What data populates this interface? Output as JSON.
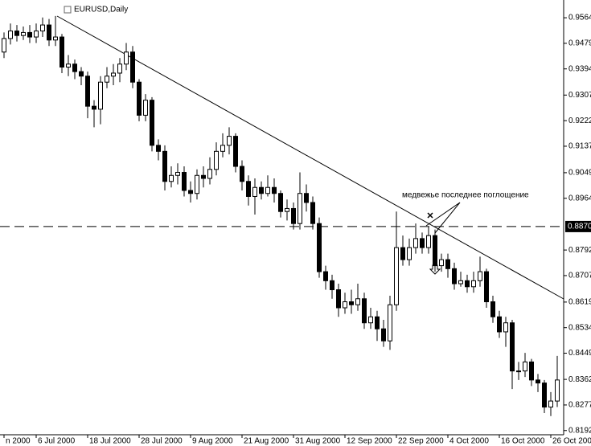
{
  "chart_data": {
    "type": "candlestick",
    "title": "EURUSD,Daily",
    "annotation": "медвежье последнее поглощение",
    "categories": [
      "n 2000",
      null,
      null,
      null,
      null,
      "6 Jul 2000",
      null,
      null,
      null,
      null,
      null,
      null,
      null,
      "18 Jul 2000",
      null,
      null,
      null,
      null,
      null,
      null,
      null,
      "28 Jul 2000",
      null,
      null,
      null,
      null,
      null,
      null,
      null,
      "9 Aug 2000",
      null,
      null,
      null,
      null,
      null,
      null,
      null,
      "21 Aug 2000",
      null,
      null,
      null,
      null,
      null,
      null,
      null,
      "31 Aug 2000",
      null,
      null,
      null,
      null,
      null,
      null,
      null,
      "12 Sep 2000",
      null,
      null,
      null,
      null,
      null,
      null,
      null,
      "22 Sep 2000",
      null,
      null,
      null,
      null,
      null,
      null,
      null,
      "4 Oct 2000",
      null,
      null,
      null,
      null,
      null,
      null,
      null,
      "16 Oct 2000",
      null,
      null,
      null,
      null,
      null,
      null,
      null,
      "26 Oct 200",
      null
    ],
    "open": [
      0.945,
      0.9495,
      0.952,
      0.9505,
      0.9515,
      0.95,
      0.952,
      0.954,
      0.949,
      0.95,
      0.94,
      0.941,
      0.9385,
      0.937,
      0.927,
      0.926,
      0.935,
      0.937,
      0.938,
      0.941,
      0.945,
      0.935,
      0.924,
      0.929,
      0.914,
      0.912,
      0.902,
      0.904,
      0.905,
      0.899,
      0.898,
      0.904,
      0.903,
      0.906,
      0.912,
      0.914,
      0.917,
      0.907,
      0.902,
      0.897,
      0.9,
      0.898,
      0.9,
      0.898,
      0.892,
      0.893,
      0.888,
      0.898,
      0.895,
      0.888,
      0.872,
      0.869,
      0.866,
      0.86,
      0.862,
      0.861,
      0.863,
      0.855,
      0.857,
      0.853,
      0.849,
      0.861,
      0.88,
      0.876,
      0.88,
      0.883,
      0.88,
      0.884,
      0.874,
      0.876,
      0.873,
      0.868,
      0.869,
      0.867,
      0.869,
      0.872,
      0.862,
      0.857,
      0.852,
      0.855,
      0.839,
      0.839,
      0.842,
      0.836,
      0.835,
      0.827,
      0.829
    ],
    "high": [
      0.9515,
      0.9545,
      0.954,
      0.9535,
      0.954,
      0.9545,
      0.9565,
      0.956,
      0.957,
      0.951,
      0.944,
      0.9425,
      0.94,
      0.9385,
      0.929,
      0.937,
      0.94,
      0.941,
      0.943,
      0.948,
      0.947,
      0.936,
      0.931,
      0.93,
      0.916,
      0.914,
      0.907,
      0.908,
      0.907,
      0.902,
      0.906,
      0.907,
      0.91,
      0.915,
      0.918,
      0.92,
      0.918,
      0.909,
      0.904,
      0.903,
      0.902,
      0.904,
      0.903,
      0.899,
      0.896,
      0.895,
      0.905,
      0.901,
      0.897,
      0.89,
      0.874,
      0.871,
      0.868,
      0.865,
      0.866,
      0.868,
      0.865,
      0.86,
      0.859,
      0.856,
      0.864,
      0.892,
      0.884,
      0.883,
      0.888,
      0.885,
      0.887,
      0.886,
      0.878,
      0.878,
      0.875,
      0.872,
      0.871,
      0.872,
      0.877,
      0.873,
      0.864,
      0.859,
      0.857,
      0.856,
      0.842,
      0.845,
      0.843,
      0.838,
      0.836,
      0.832,
      0.844
    ],
    "low": [
      0.943,
      0.9475,
      0.9485,
      0.949,
      0.948,
      0.948,
      0.95,
      0.947,
      0.947,
      0.938,
      0.937,
      0.936,
      0.934,
      0.923,
      0.92,
      0.921,
      0.933,
      0.934,
      0.935,
      0.939,
      0.933,
      0.922,
      0.922,
      0.912,
      0.909,
      0.899,
      0.9,
      0.901,
      0.897,
      0.895,
      0.896,
      0.9,
      0.901,
      0.904,
      0.91,
      0.911,
      0.905,
      0.899,
      0.894,
      0.891,
      0.896,
      0.897,
      0.895,
      0.89,
      0.889,
      0.886,
      0.886,
      0.892,
      0.886,
      0.87,
      0.866,
      0.863,
      0.857,
      0.858,
      0.858,
      0.859,
      0.853,
      0.853,
      0.849,
      0.847,
      0.846,
      0.859,
      0.874,
      0.874,
      0.878,
      0.878,
      0.878,
      0.872,
      0.872,
      0.87,
      0.866,
      0.867,
      0.865,
      0.865,
      0.867,
      0.86,
      0.855,
      0.85,
      0.847,
      0.833,
      0.836,
      0.837,
      0.834,
      0.832,
      0.825,
      0.824,
      0.827
    ],
    "close": [
      0.9495,
      0.952,
      0.9505,
      0.9515,
      0.95,
      0.952,
      0.954,
      0.949,
      0.95,
      0.94,
      0.941,
      0.9385,
      0.937,
      0.927,
      0.926,
      0.935,
      0.937,
      0.938,
      0.941,
      0.945,
      0.935,
      0.924,
      0.929,
      0.914,
      0.912,
      0.902,
      0.904,
      0.905,
      0.899,
      0.898,
      0.904,
      0.903,
      0.906,
      0.912,
      0.914,
      0.917,
      0.907,
      0.902,
      0.897,
      0.9,
      0.898,
      0.9,
      0.898,
      0.892,
      0.893,
      0.888,
      0.898,
      0.895,
      0.888,
      0.872,
      0.869,
      0.866,
      0.86,
      0.862,
      0.861,
      0.863,
      0.855,
      0.857,
      0.853,
      0.849,
      0.861,
      0.88,
      0.876,
      0.88,
      0.883,
      0.88,
      0.884,
      0.874,
      0.876,
      0.873,
      0.868,
      0.869,
      0.867,
      0.869,
      0.872,
      0.862,
      0.857,
      0.852,
      0.855,
      0.839,
      0.839,
      0.842,
      0.836,
      0.835,
      0.827,
      0.829,
      0.836
    ],
    "up_color": "#ffffff",
    "down_color": "#000000",
    "ylim": [
      0.8178,
      0.9623
    ],
    "yticks": [
      0.9564,
      0.9479,
      0.9394,
      0.9307,
      0.9222,
      0.9137,
      0.9049,
      0.8964,
      0.8792,
      0.8707,
      0.8619,
      0.8534,
      0.8449,
      0.8362,
      0.8277,
      0.8192
    ],
    "hline": {
      "value": 0.887,
      "label": "0.8870"
    }
  }
}
